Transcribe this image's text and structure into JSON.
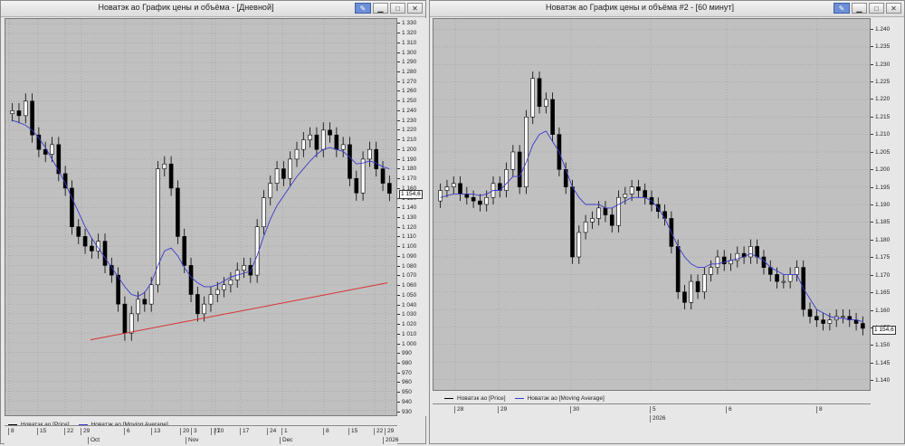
{
  "windows": [
    {
      "title": "Новатэк ао График цены и объёма - [Дневной]",
      "legend": [
        {
          "label": "Новатэк ао [Price]",
          "color": "#000000"
        },
        {
          "label": "Новатэк ао [Moving Average]",
          "color": "#3a3acd"
        }
      ],
      "last_price_label": "1 154,6",
      "x_row1": [
        "8",
        "15",
        "22",
        "29",
        "6",
        "13",
        "20",
        "27",
        "3",
        "10",
        "17",
        "24",
        "1",
        "8",
        "15",
        "22",
        "29"
      ],
      "x_row2": [
        "Oct",
        "Nov",
        "Dec",
        "2026"
      ],
      "y_ticks": [
        "1 330",
        "1 320",
        "1 310",
        "1 300",
        "1 290",
        "1 280",
        "1 270",
        "1 260",
        "1 250",
        "1 240",
        "1 230",
        "1 220",
        "1 210",
        "1 200",
        "1 190",
        "1 180",
        "1 170",
        "1 160",
        "1 150",
        "1 140",
        "1 130",
        "1 120",
        "1 110",
        "1 100",
        "1 090",
        "1 080",
        "1 070",
        "1 060",
        "1 050",
        "1 040",
        "1 030",
        "1 020",
        "1 010",
        "1 000",
        "990",
        "980",
        "970",
        "960",
        "950",
        "940",
        "930"
      ]
    },
    {
      "title": "Новатэк ао График цены и объёма #2 - [60 минут]",
      "legend": [
        {
          "label": "Новатэк ао [Price]",
          "color": "#000000"
        },
        {
          "label": "Новатэк ао [Moving Average]",
          "color": "#3a3acd"
        }
      ],
      "last_price_label": "1 154,6",
      "x_row1": [
        "28",
        "29",
        "30",
        "5",
        "6",
        "8"
      ],
      "x_row2": [
        "2026"
      ],
      "y_ticks": [
        "1.240",
        "1.235",
        "1.230",
        "1.225",
        "1.220",
        "1.215",
        "1.210",
        "1.205",
        "1.200",
        "1.195",
        "1.190",
        "1.185",
        "1.180",
        "1.175",
        "1.170",
        "1.165",
        "1.160",
        "1.155",
        "1.150",
        "1.145",
        "1.140"
      ]
    }
  ],
  "chart_data": [
    {
      "type": "candlestick",
      "title": "Новатэк ао График цены и объёма - [Дневной]",
      "series": [
        {
          "name": "Новатэк ао [Price]",
          "type": "candlestick"
        },
        {
          "name": "Новатэк ао [Moving Average]",
          "type": "line"
        }
      ],
      "ylim": [
        925,
        1335
      ],
      "close_approx": [
        1240,
        1235,
        1250,
        1215,
        1200,
        1195,
        1205,
        1175,
        1160,
        1120,
        1110,
        1100,
        1095,
        1105,
        1080,
        1070,
        1040,
        1010,
        1030,
        1045,
        1040,
        1060,
        1180,
        1185,
        1160,
        1110,
        1080,
        1050,
        1030,
        1040,
        1050,
        1055,
        1060,
        1065,
        1075,
        1080,
        1070,
        1120,
        1150,
        1165,
        1180,
        1170,
        1190,
        1200,
        1210,
        1215,
        1200,
        1220,
        1215,
        1200,
        1205,
        1170,
        1155,
        1190,
        1200,
        1180,
        1165,
        1154.6
      ],
      "moving_average_approx": [
        1230,
        1228,
        1225,
        1220,
        1212,
        1202,
        1190,
        1178,
        1165,
        1150,
        1135,
        1120,
        1108,
        1098,
        1088,
        1078,
        1068,
        1058,
        1050,
        1048,
        1052,
        1062,
        1080,
        1095,
        1098,
        1090,
        1078,
        1068,
        1062,
        1058,
        1058,
        1060,
        1064,
        1068,
        1070,
        1072,
        1074,
        1090,
        1110,
        1128,
        1142,
        1152,
        1162,
        1172,
        1180,
        1188,
        1195,
        1200,
        1202,
        1200,
        1198,
        1192,
        1185,
        1186,
        1188,
        1186,
        1182,
        1180
      ],
      "trendline": {
        "from": 1003,
        "to": 1062,
        "color": "#d93030"
      }
    },
    {
      "type": "candlestick",
      "title": "Новатэк ао График цены и объёма #2 - [60 минут]",
      "series": [
        {
          "name": "Новатэк ао [Price]",
          "type": "candlestick"
        },
        {
          "name": "Новатэк ао [Moving Average]",
          "type": "line"
        }
      ],
      "ylim": [
        1137,
        1243
      ],
      "close_approx": [
        1194,
        1195,
        1196,
        1193,
        1192,
        1191,
        1190,
        1192,
        1196,
        1194,
        1200,
        1205,
        1195,
        1215,
        1226,
        1218,
        1220,
        1210,
        1200,
        1195,
        1175,
        1182,
        1185,
        1186,
        1189,
        1187,
        1184,
        1192,
        1193,
        1195,
        1194,
        1192,
        1190,
        1188,
        1186,
        1178,
        1165,
        1162,
        1168,
        1165,
        1170,
        1172,
        1175,
        1173,
        1174,
        1176,
        1175,
        1178,
        1175,
        1172,
        1170,
        1168,
        1168,
        1170,
        1172,
        1160,
        1158,
        1157,
        1156,
        1157,
        1158,
        1158,
        1157,
        1156,
        1154.6
      ],
      "moving_average_approx": [
        1192,
        1192.5,
        1193,
        1193,
        1193,
        1193,
        1192.5,
        1193,
        1194,
        1194,
        1196,
        1198,
        1198,
        1202,
        1207,
        1210,
        1211,
        1208,
        1205,
        1200,
        1195,
        1192,
        1190,
        1190,
        1190,
        1189,
        1189,
        1190,
        1191,
        1192,
        1192,
        1192,
        1191,
        1189,
        1186,
        1182,
        1178,
        1175,
        1173,
        1172,
        1172,
        1173,
        1173,
        1173.5,
        1174,
        1174.5,
        1175,
        1176,
        1175,
        1174,
        1172,
        1171,
        1170,
        1170,
        1170,
        1166,
        1163,
        1160,
        1159,
        1158,
        1157.5,
        1157.5,
        1157,
        1157,
        1156.5
      ]
    }
  ]
}
